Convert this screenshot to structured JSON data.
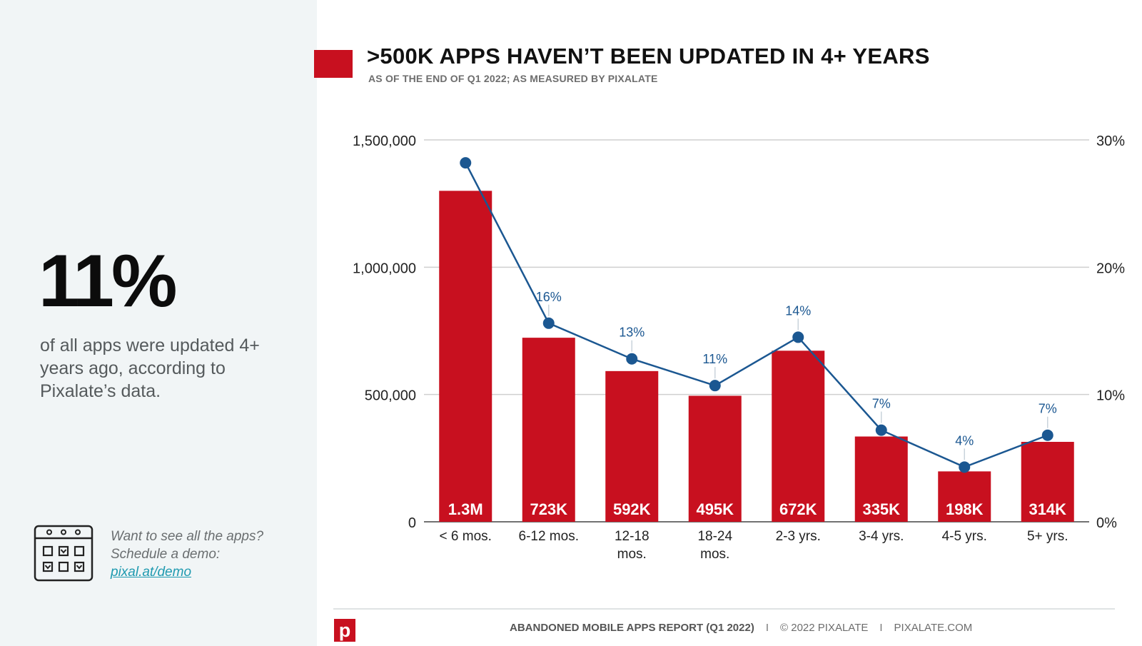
{
  "sidebar": {
    "stat": "11%",
    "stat_description": "of all apps were updated 4+ years ago, according to Pixalate’s data.",
    "demo_prefix": "Want to see all the apps? Schedule a demo: ",
    "demo_link": "pixal.at/demo",
    "icon": "calendar-icon"
  },
  "colors": {
    "brand_red": "#c8101f",
    "line_blue": "#1b5791",
    "sidebar_bg": "#f1f5f6"
  },
  "chart_data": {
    "type": "bar",
    "title": ">500K APPS HAVEN’T BEEN UPDATED IN 4+ YEARS",
    "subtitle": "AS OF THE END OF Q1 2022; AS MEASURED BY PIXALATE",
    "categories": [
      [
        "< 6 mos."
      ],
      [
        "6-12 mos."
      ],
      [
        "12-18",
        "mos."
      ],
      [
        "18-24",
        "mos."
      ],
      [
        "2-3 yrs."
      ],
      [
        "3-4 yrs."
      ],
      [
        "4-5 yrs."
      ],
      [
        "5+ yrs."
      ]
    ],
    "series": [
      {
        "name": "Apps",
        "type": "bar",
        "axis": "left",
        "values": [
          1300000,
          723000,
          592000,
          495000,
          672000,
          335000,
          198000,
          314000
        ],
        "labels": [
          "1.3M",
          "723K",
          "592K",
          "495K",
          "672K",
          "335K",
          "198K",
          "314K"
        ]
      },
      {
        "name": "Share of apps",
        "type": "line",
        "axis": "right",
        "values": [
          28.2,
          15.6,
          12.8,
          10.7,
          14.5,
          7.2,
          4.3,
          6.8
        ],
        "labels": [
          "",
          "16%",
          "13%",
          "11%",
          "14%",
          "7%",
          "4%",
          "7%"
        ]
      }
    ],
    "y_left": {
      "range": [
        0,
        1500000
      ],
      "ticks": [
        0,
        500000,
        1000000,
        1500000
      ],
      "tick_labels": [
        "0",
        "500,000",
        "1,000,000",
        "1,500,000"
      ]
    },
    "y_right": {
      "range": [
        0,
        30
      ],
      "ticks": [
        0,
        10,
        20,
        30
      ],
      "tick_labels": [
        "0%",
        "10%",
        "20%",
        "30%"
      ]
    },
    "grid": true,
    "legend": "none"
  },
  "footer": {
    "report": "ABANDONED MOBILE APPS REPORT (Q1 2022)",
    "separator": "I",
    "copyright": "© 2022 PIXALATE",
    "site": "PIXALATE.COM",
    "logo_letter": "p"
  }
}
